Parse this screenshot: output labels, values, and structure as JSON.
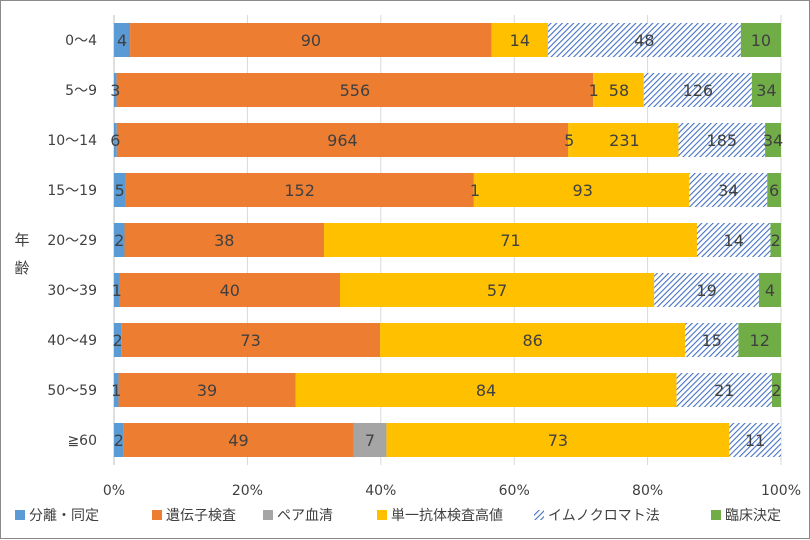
{
  "chart_data": {
    "type": "bar",
    "orientation": "horizontal",
    "stacked": "percent",
    "ylabel": "年齢",
    "xlabel": "",
    "title": "",
    "xlim": [
      0,
      100
    ],
    "x_ticks": [
      "0%",
      "20%",
      "40%",
      "60%",
      "80%",
      "100%"
    ],
    "grid": true,
    "legend_position": "bottom",
    "categories": [
      "0～4",
      "5～9",
      "10～14",
      "15～19",
      "20～29",
      "30～39",
      "40～49",
      "50～59",
      "≧60"
    ],
    "series": [
      {
        "name": "分離・同定",
        "color": "#5B9BD5",
        "pattern": "solid",
        "values": [
          4,
          3,
          6,
          5,
          2,
          1,
          2,
          1,
          2
        ]
      },
      {
        "name": "遺伝子検査",
        "color": "#ED7D31",
        "pattern": "solid",
        "values": [
          90,
          556,
          964,
          152,
          38,
          40,
          73,
          39,
          49
        ]
      },
      {
        "name": "ペア血清",
        "color": "#A5A5A5",
        "pattern": "solid",
        "values": [
          0,
          0,
          0,
          0,
          0,
          0,
          0,
          0,
          7
        ]
      },
      {
        "name": "単一抗体検査高値",
        "color": "#FFC000",
        "pattern": "solid",
        "values": [
          0,
          1,
          5,
          1,
          0,
          0,
          0,
          0,
          0
        ]
      },
      {
        "name": "単一抗体検査高値",
        "color": "#FFC000",
        "pattern": "solid",
        "values": [
          14,
          58,
          231,
          93,
          71,
          57,
          86,
          84,
          73
        ]
      },
      {
        "name": "イムノクロマト法",
        "color": "#4472C4",
        "pattern": "diagonal-hatch",
        "values": [
          48,
          126,
          185,
          34,
          14,
          19,
          15,
          21,
          11
        ]
      },
      {
        "name": "臨床決定",
        "color": "#70AD47",
        "pattern": "solid",
        "values": [
          10,
          34,
          34,
          6,
          2,
          4,
          12,
          2,
          0
        ]
      }
    ],
    "legend": [
      "分離・同定",
      "遺伝子検査",
      "ペア血清",
      "単一抗体検査高値",
      "イムノクロマト法",
      "臨床決定"
    ],
    "data_labels": [
      [
        "4",
        "90",
        "",
        "",
        "14",
        "48",
        "10"
      ],
      [
        "3",
        "556",
        "",
        "1",
        "58",
        "126",
        "34"
      ],
      [
        "6",
        "964",
        "",
        "5",
        "231",
        "185",
        "34"
      ],
      [
        "5",
        "152",
        "",
        "1",
        "93",
        "34",
        "6"
      ],
      [
        "2",
        "38",
        "",
        "",
        "71",
        "14",
        "2"
      ],
      [
        "1",
        "40",
        "",
        "",
        "57",
        "19",
        "4"
      ],
      [
        "2",
        "73",
        "",
        "",
        "86",
        "15",
        "12"
      ],
      [
        "1",
        "39",
        "",
        "",
        "84",
        "21",
        "2"
      ],
      [
        "2",
        "49",
        "7",
        "",
        "73",
        "11",
        ""
      ]
    ]
  }
}
